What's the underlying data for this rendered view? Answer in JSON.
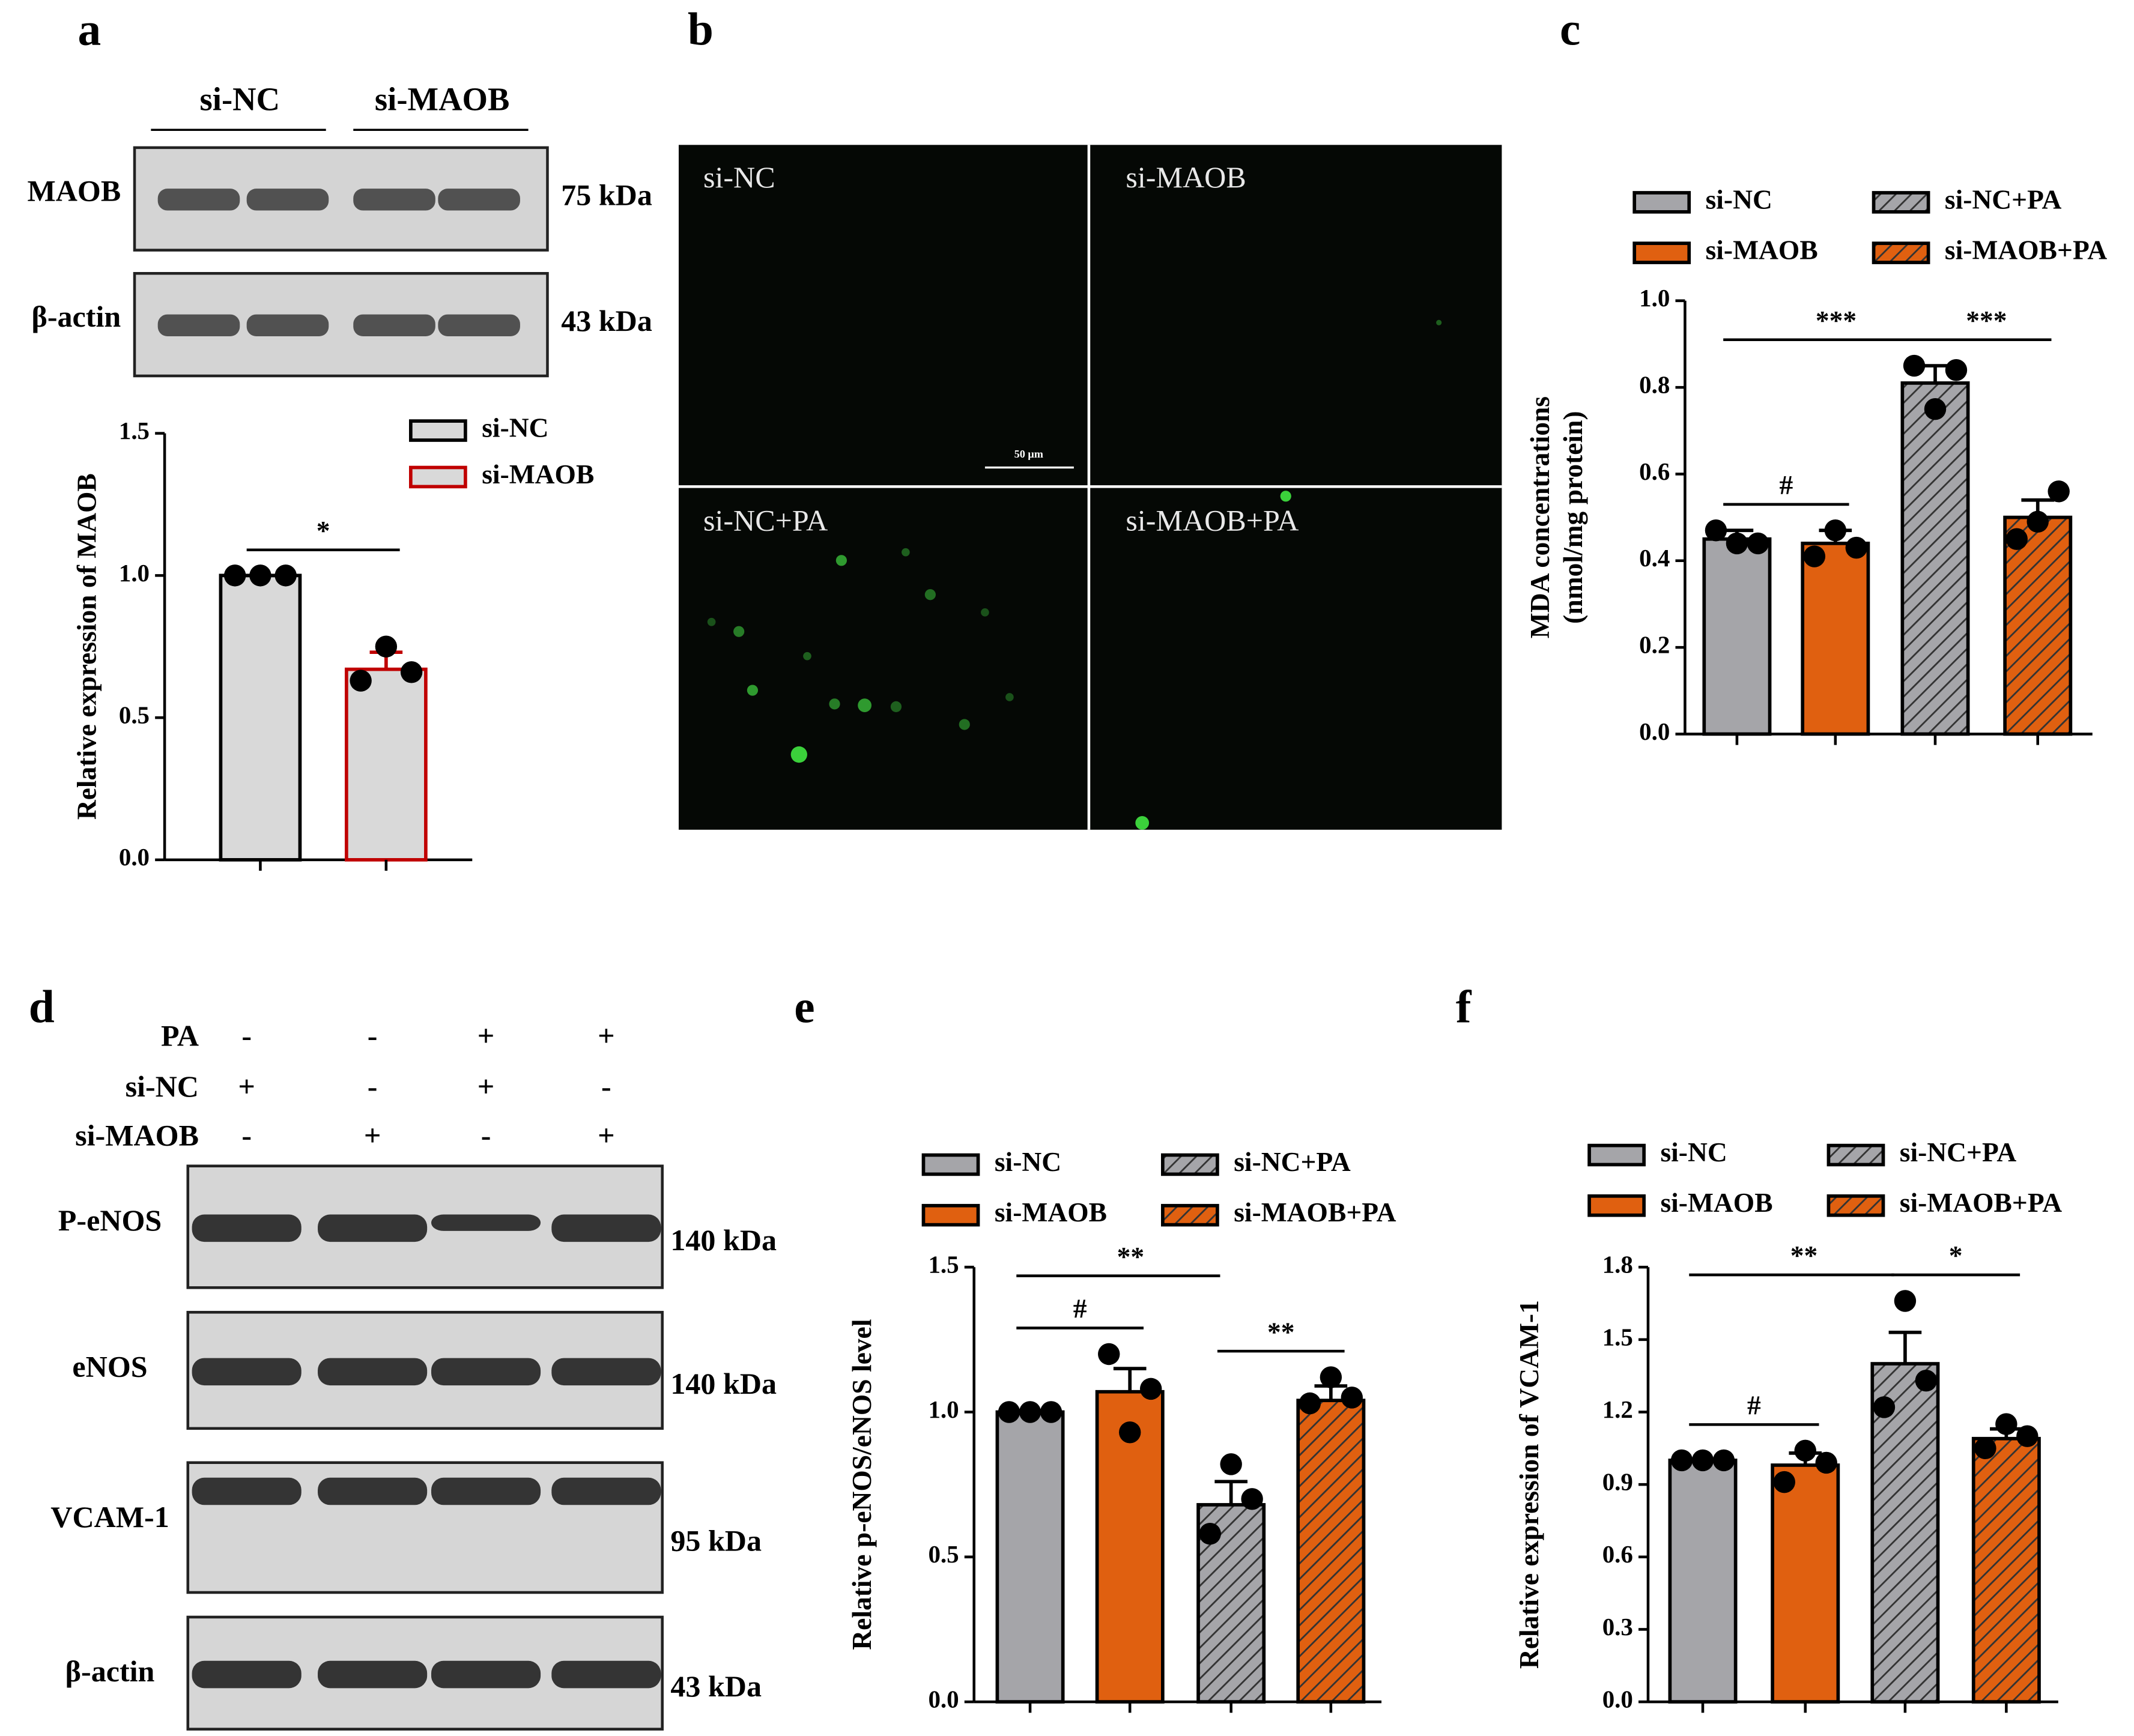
{
  "panel_labels": [
    "a",
    "b",
    "c",
    "d",
    "e",
    "f"
  ],
  "blot_a": {
    "groups": [
      "si-NC",
      "si-MAOB"
    ],
    "rows": [
      {
        "name": "MAOB",
        "size": "75 kDa"
      },
      {
        "name": "β-actin",
        "size": "43 kDa"
      }
    ]
  },
  "microscopy_b": {
    "labels": [
      "si-NC",
      "si-MAOB",
      "si-NC+PA",
      "si-MAOB+PA"
    ],
    "scale_bar": "50 μm"
  },
  "blot_d": {
    "conditions": [
      {
        "name": "PA",
        "signs": [
          "-",
          "-",
          "+",
          "+"
        ]
      },
      {
        "name": "si-NC",
        "signs": [
          "+",
          "-",
          "+",
          "-"
        ]
      },
      {
        "name": "si-MAOB",
        "signs": [
          "-",
          "+",
          "-",
          "+"
        ]
      }
    ],
    "rows": [
      {
        "name": "P-eNOS",
        "size": "140 kDa"
      },
      {
        "name": "eNOS",
        "size": "140 kDa"
      },
      {
        "name": "VCAM-1",
        "size": "95 kDa"
      },
      {
        "name": "β-actin",
        "size": "43 kDa"
      }
    ]
  },
  "chart_data": [
    {
      "type": "bar",
      "ylabel": "Relative expression of MAOB",
      "ylim": [
        0,
        1.5
      ],
      "yticks": [
        {
          "value": 0,
          "label": "0.0"
        },
        {
          "value": 0.5,
          "label": "0.5"
        },
        {
          "value": 1,
          "label": "1.0"
        },
        {
          "value": 1.5,
          "label": "1.5"
        }
      ],
      "legend_columns": 1,
      "series": [
        {
          "name": "si-NC",
          "color": "#d9d9d9",
          "edge": "#000000",
          "hatch": false,
          "values": [
            1.0
          ],
          "errors": [
            0.0
          ],
          "points": [
            1.0,
            1.0,
            1.0
          ]
        },
        {
          "name": "si-MAOB",
          "color": "#d9d9d9",
          "edge": "#c00000",
          "hatch": false,
          "values": [
            0.67
          ],
          "errors": [
            0.06
          ],
          "points": [
            0.63,
            0.75,
            0.66
          ]
        }
      ],
      "comparisons": [
        {
          "pair": [
            0,
            1
          ],
          "label": "*"
        }
      ]
    },
    {
      "type": "bar",
      "ylabel": [
        "MDA concentrations",
        "(nmol/mg protein)"
      ],
      "ylim": [
        0,
        1.0
      ],
      "yticks": [
        {
          "value": 0,
          "label": "0.0"
        },
        {
          "value": 0.2,
          "label": "0.2"
        },
        {
          "value": 0.4,
          "label": "0.4"
        },
        {
          "value": 0.6,
          "label": "0.6"
        },
        {
          "value": 0.8,
          "label": "0.8"
        },
        {
          "value": 1,
          "label": "1.0"
        }
      ],
      "legend_columns": 2,
      "series": [
        {
          "name": "si-NC",
          "color": "#a5a5a9",
          "hatch": false,
          "values": [
            0.45
          ],
          "errors": [
            0.02
          ],
          "points": [
            0.47,
            0.44,
            0.44
          ]
        },
        {
          "name": "si-MAOB",
          "color": "#e06010",
          "hatch": false,
          "values": [
            0.44
          ],
          "errors": [
            0.03
          ],
          "points": [
            0.41,
            0.47,
            0.43
          ]
        },
        {
          "name": "si-NC+PA",
          "color": "#a5a5a9",
          "hatch": true,
          "values": [
            0.81
          ],
          "errors": [
            0.04
          ],
          "points": [
            0.85,
            0.75,
            0.84
          ]
        },
        {
          "name": "si-MAOB+PA",
          "color": "#e06010",
          "hatch": true,
          "values": [
            0.5
          ],
          "errors": [
            0.04
          ],
          "points": [
            0.45,
            0.49,
            0.56
          ]
        }
      ],
      "comparisons": [
        {
          "pair": [
            0,
            1
          ],
          "label": "#"
        },
        {
          "pair": [
            0,
            2
          ],
          "label": "***"
        },
        {
          "pair": [
            2,
            3
          ],
          "label": "***"
        }
      ]
    },
    {
      "type": "bar",
      "ylabel": "Relative p-eNOS/eNOS level",
      "ylim": [
        0,
        1.5
      ],
      "yticks": [
        {
          "value": 0,
          "label": "0.0"
        },
        {
          "value": 0.5,
          "label": "0.5"
        },
        {
          "value": 1,
          "label": "1.0"
        },
        {
          "value": 1.5,
          "label": "1.5"
        }
      ],
      "legend_columns": 2,
      "series": [
        {
          "name": "si-NC",
          "color": "#a5a5a9",
          "hatch": false,
          "values": [
            1.0
          ],
          "errors": [
            0.0
          ],
          "points": [
            1.0,
            1.0,
            1.0
          ]
        },
        {
          "name": "si-MAOB",
          "color": "#e06010",
          "hatch": false,
          "values": [
            1.07
          ],
          "errors": [
            0.08
          ],
          "points": [
            1.2,
            0.93,
            1.08
          ]
        },
        {
          "name": "si-NC+PA",
          "color": "#a5a5a9",
          "hatch": true,
          "values": [
            0.68
          ],
          "errors": [
            0.08
          ],
          "points": [
            0.58,
            0.82,
            0.7
          ]
        },
        {
          "name": "si-MAOB+PA",
          "color": "#e06010",
          "hatch": true,
          "values": [
            1.04
          ],
          "errors": [
            0.05
          ],
          "points": [
            1.03,
            1.12,
            1.05
          ]
        }
      ],
      "comparisons": [
        {
          "pair": [
            0,
            1
          ],
          "label": "#"
        },
        {
          "pair": [
            0,
            2
          ],
          "label": "**"
        },
        {
          "pair": [
            2,
            3
          ],
          "label": "**"
        }
      ]
    },
    {
      "type": "bar",
      "ylabel": "Relative expression of VCAM-1",
      "ylim": [
        0,
        1.8
      ],
      "yticks": [
        {
          "value": 0,
          "label": "0.0"
        },
        {
          "value": 0.3,
          "label": "0.3"
        },
        {
          "value": 0.6,
          "label": "0.6"
        },
        {
          "value": 0.9,
          "label": "0.9"
        },
        {
          "value": 1.2,
          "label": "1.2"
        },
        {
          "value": 1.5,
          "label": "1.5"
        },
        {
          "value": 1.8,
          "label": "1.8"
        }
      ],
      "legend_columns": 2,
      "series": [
        {
          "name": "si-NC",
          "color": "#a5a5a9",
          "hatch": false,
          "values": [
            1.0
          ],
          "errors": [
            0.0
          ],
          "points": [
            1.0,
            1.0,
            1.0
          ]
        },
        {
          "name": "si-MAOB",
          "color": "#e06010",
          "hatch": false,
          "values": [
            0.98
          ],
          "errors": [
            0.05
          ],
          "points": [
            0.91,
            1.04,
            0.99
          ]
        },
        {
          "name": "si-NC+PA",
          "color": "#a5a5a9",
          "hatch": true,
          "values": [
            1.4
          ],
          "errors": [
            0.13
          ],
          "points": [
            1.22,
            1.66,
            1.33
          ]
        },
        {
          "name": "si-MAOB+PA",
          "color": "#e06010",
          "hatch": true,
          "values": [
            1.09
          ],
          "errors": [
            0.04
          ],
          "points": [
            1.05,
            1.15,
            1.1
          ]
        }
      ],
      "comparisons": [
        {
          "pair": [
            0,
            1
          ],
          "label": "#"
        },
        {
          "pair": [
            0,
            2
          ],
          "label": "**"
        },
        {
          "pair": [
            2,
            3
          ],
          "label": "*"
        }
      ]
    }
  ]
}
